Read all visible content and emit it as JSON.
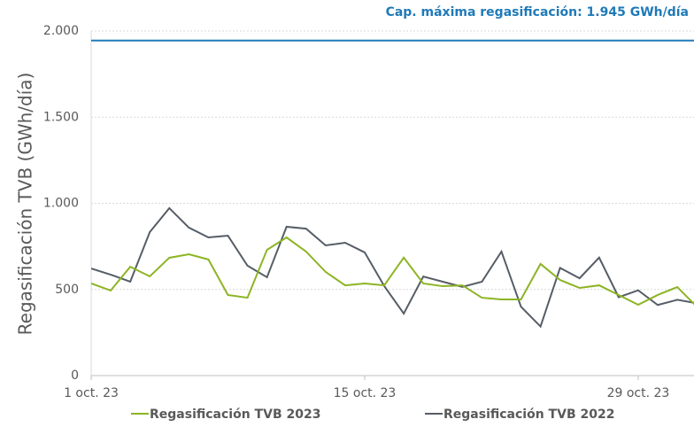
{
  "chart_data": {
    "type": "line",
    "y_label": "Regasificación TVB (GWh/día)",
    "annotation": {
      "text": "Cap. máxima regasificación: 1.945 GWh/día",
      "value": 1945,
      "color": "#1f7ab8"
    },
    "categories": [
      "1 oct. 23",
      null,
      null,
      null,
      null,
      null,
      null,
      null,
      null,
      null,
      null,
      null,
      null,
      null,
      "15 oct. 23",
      null,
      null,
      null,
      null,
      null,
      null,
      null,
      null,
      null,
      null,
      null,
      null,
      null,
      "29 oct. 23",
      null,
      null,
      null
    ],
    "series": [
      {
        "name": "Regasificación TVB 2023",
        "color": "#8cb423",
        "values": [
          535,
          494,
          632,
          576,
          684,
          704,
          674,
          468,
          452,
          730,
          802,
          720,
          602,
          524,
          535,
          524,
          685,
          535,
          519,
          524,
          452,
          442,
          442,
          648,
          555,
          509,
          524,
          468,
          411,
          468,
          514,
          400
        ]
      },
      {
        "name": "Regasificación TVB 2022",
        "color": "#555d66",
        "values": [
          622,
          586,
          545,
          833,
          972,
          859,
          802,
          812,
          638,
          571,
          864,
          853,
          756,
          771,
          715,
          520,
          360,
          575,
          545,
          515,
          545,
          720,
          400,
          285,
          625,
          565,
          685,
          455,
          495,
          410,
          440,
          420
        ]
      }
    ],
    "ylim": [
      0,
      2000
    ],
    "yticks": [
      0,
      500,
      {
        "value": 1000,
        "label": "1.000"
      },
      {
        "value": 1500,
        "label": "1.500"
      },
      {
        "value": 2000,
        "label": "2.000"
      }
    ],
    "grid": true,
    "legend": "bottom"
  }
}
